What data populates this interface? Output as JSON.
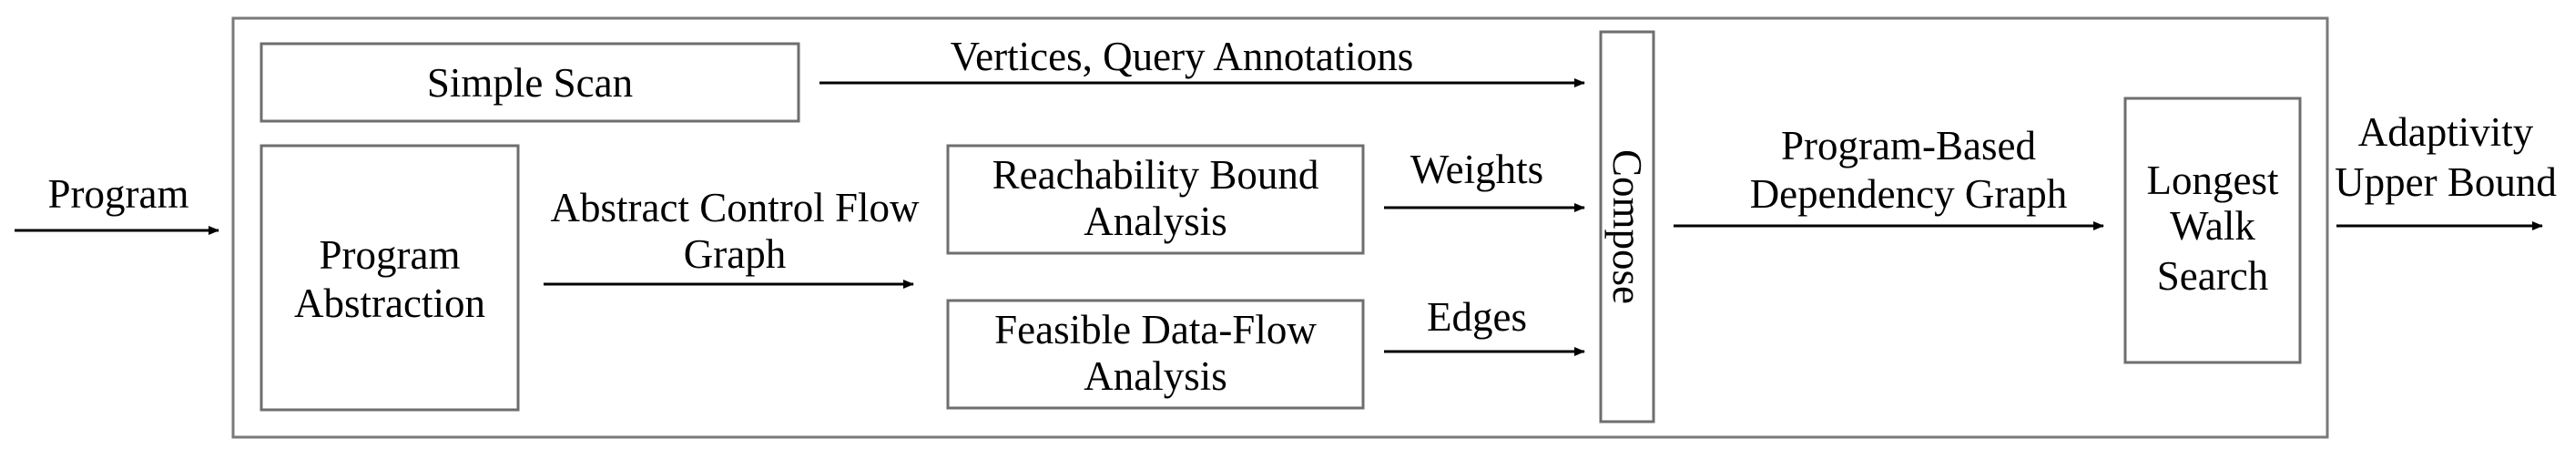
{
  "diagram": {
    "inputs": {
      "program": "Program"
    },
    "outputs": {
      "adaptivity_line1": "Adaptivity",
      "adaptivity_line2": "Upper Bound"
    },
    "boxes": {
      "simple_scan": "Simple Scan",
      "program_abstraction_line1": "Program",
      "program_abstraction_line2": "Abstraction",
      "reachability_line1": "Reachability Bound",
      "reachability_line2": "Analysis",
      "feasible_line1": "Feasible Data-Flow",
      "feasible_line2": "Analysis",
      "compose": "Compose",
      "longest_line1": "Longest",
      "longest_line2": "Walk",
      "longest_line3": "Search"
    },
    "edges": {
      "vertices_query": "Vertices, Query Annotations",
      "acfg_line1": "Abstract Control Flow",
      "acfg_line2": "Graph",
      "weights": "Weights",
      "edges": "Edges",
      "pbdg_line1": "Program-Based",
      "pbdg_line2": "Dependency Graph"
    }
  }
}
